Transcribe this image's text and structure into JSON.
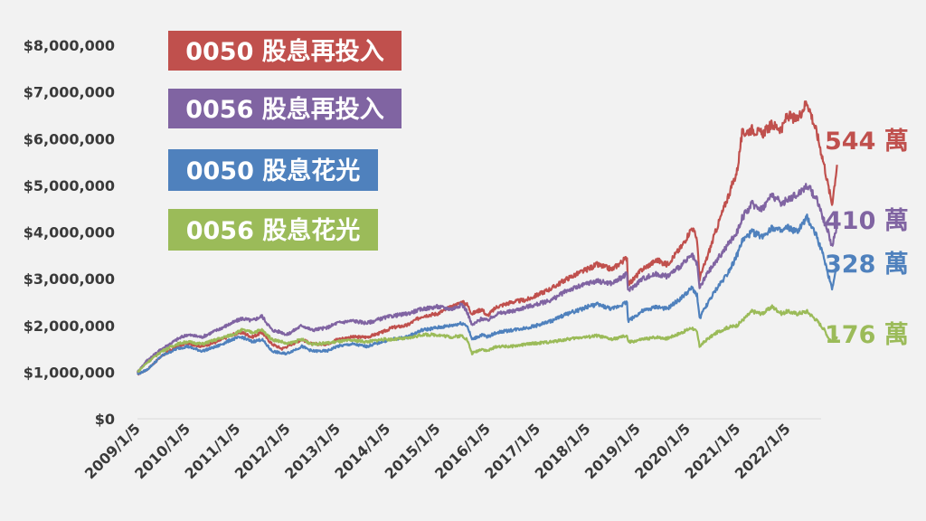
{
  "colors": {
    "s1": "#c0504d",
    "s2": "#8064a2",
    "s3": "#4f81bd",
    "s4": "#9bbb59"
  },
  "chart_data": {
    "type": "line",
    "title": "",
    "xlabel": "",
    "ylabel": "",
    "ylim": [
      0,
      8000000
    ],
    "xlim": [
      "2009/1/5",
      "2023/1/5"
    ],
    "grid": false,
    "legend": "top-left",
    "yticks": [
      0,
      1000000,
      2000000,
      3000000,
      4000000,
      5000000,
      6000000,
      7000000,
      8000000
    ],
    "ytick_labels": [
      "$0",
      "$1,000,000",
      "$2,000,000",
      "$3,000,000",
      "$4,000,000",
      "$5,000,000",
      "$6,000,000",
      "$7,000,000",
      "$8,000,000"
    ],
    "xtick_labels": [
      "2009/1/5",
      "2010/1/5",
      "2011/1/5",
      "2012/1/5",
      "2013/1/5",
      "2014/1/5",
      "2015/1/5",
      "2016/1/5",
      "2017/1/5",
      "2018/1/5",
      "2019/1/5",
      "2020/1/5",
      "2021/1/5",
      "2022/1/5"
    ],
    "series": [
      {
        "name": "0050 股息再投入",
        "end_label": "544 萬",
        "x": [
          2009.01,
          2009.2,
          2009.5,
          2009.8,
          2010.0,
          2010.3,
          2010.6,
          2010.9,
          2011.1,
          2011.3,
          2011.5,
          2011.7,
          2011.9,
          2012.0,
          2012.3,
          2012.5,
          2012.8,
          2013.0,
          2013.3,
          2013.6,
          2013.9,
          2014.1,
          2014.4,
          2014.7,
          2015.0,
          2015.3,
          2015.5,
          2015.6,
          2015.7,
          2015.9,
          2016.0,
          2016.2,
          2016.5,
          2016.8,
          2017.0,
          2017.3,
          2017.6,
          2017.9,
          2018.0,
          2018.2,
          2018.5,
          2018.8,
          2018.82,
          2018.9,
          2019.1,
          2019.4,
          2019.6,
          2019.9,
          2020.1,
          2020.2,
          2020.25,
          2020.4,
          2020.6,
          2020.8,
          2021.0,
          2021.1,
          2021.3,
          2021.5,
          2021.7,
          2021.9,
          2022.0,
          2022.2,
          2022.4,
          2022.6,
          2022.75,
          2022.82,
          2022.9,
          2023.0
        ],
        "values": [
          950000,
          1050000,
          1350000,
          1550000,
          1620000,
          1550000,
          1650000,
          1800000,
          1850000,
          1750000,
          1850000,
          1600000,
          1500000,
          1550000,
          1700000,
          1600000,
          1600000,
          1700000,
          1750000,
          1750000,
          1850000,
          1950000,
          2000000,
          2200000,
          2250000,
          2400000,
          2500000,
          2450000,
          2250000,
          2350000,
          2200000,
          2400000,
          2500000,
          2550000,
          2650000,
          2800000,
          3000000,
          3150000,
          3200000,
          3300000,
          3200000,
          3450000,
          2900000,
          2950000,
          3200000,
          3400000,
          3300000,
          3700000,
          4100000,
          3850000,
          3000000,
          3450000,
          4100000,
          4700000,
          5300000,
          6100000,
          6200000,
          6100000,
          6300000,
          6200000,
          6500000,
          6400000,
          6800000,
          6100000,
          5400000,
          5000000,
          4600000,
          5440000
        ]
      },
      {
        "name": "0056 股息再投入",
        "end_label": "410 萬",
        "x": [
          2009.01,
          2009.2,
          2009.5,
          2009.8,
          2010.0,
          2010.3,
          2010.6,
          2010.9,
          2011.1,
          2011.3,
          2011.5,
          2011.7,
          2011.9,
          2012.0,
          2012.3,
          2012.5,
          2012.8,
          2013.0,
          2013.3,
          2013.6,
          2013.9,
          2014.1,
          2014.4,
          2014.7,
          2015.0,
          2015.3,
          2015.5,
          2015.6,
          2015.7,
          2015.9,
          2016.0,
          2016.2,
          2016.5,
          2016.8,
          2017.0,
          2017.3,
          2017.6,
          2017.9,
          2018.0,
          2018.2,
          2018.5,
          2018.8,
          2018.82,
          2018.9,
          2019.1,
          2019.4,
          2019.6,
          2019.9,
          2020.1,
          2020.2,
          2020.25,
          2020.4,
          2020.6,
          2020.8,
          2021.0,
          2021.1,
          2021.3,
          2021.5,
          2021.7,
          2021.9,
          2022.0,
          2022.2,
          2022.4,
          2022.6,
          2022.75,
          2022.82,
          2022.9,
          2023.0
        ],
        "values": [
          1000000,
          1250000,
          1500000,
          1700000,
          1800000,
          1750000,
          1900000,
          2050000,
          2150000,
          2100000,
          2200000,
          1900000,
          1850000,
          1800000,
          2000000,
          1900000,
          1950000,
          2050000,
          2100000,
          2050000,
          2150000,
          2200000,
          2250000,
          2350000,
          2400000,
          2350000,
          2450000,
          2300000,
          2000000,
          2150000,
          2100000,
          2250000,
          2300000,
          2400000,
          2450000,
          2550000,
          2750000,
          2850000,
          2900000,
          2950000,
          2900000,
          3100000,
          2750000,
          2800000,
          3000000,
          3100000,
          3050000,
          3300000,
          3500000,
          3300000,
          2800000,
          3100000,
          3400000,
          3700000,
          4000000,
          4300000,
          4600000,
          4500000,
          4800000,
          4600000,
          4700000,
          4800000,
          5000000,
          4700000,
          4200000,
          4000000,
          3700000,
          4100000
        ]
      },
      {
        "name": "0050 股息花光",
        "end_label": "328 萬",
        "x": [
          2009.01,
          2009.2,
          2009.5,
          2009.8,
          2010.0,
          2010.3,
          2010.6,
          2010.9,
          2011.1,
          2011.3,
          2011.5,
          2011.7,
          2011.9,
          2012.0,
          2012.3,
          2012.5,
          2012.8,
          2013.0,
          2013.3,
          2013.6,
          2013.9,
          2014.1,
          2014.4,
          2014.7,
          2015.0,
          2015.3,
          2015.5,
          2015.6,
          2015.7,
          2015.9,
          2016.0,
          2016.2,
          2016.5,
          2016.8,
          2017.0,
          2017.3,
          2017.6,
          2017.9,
          2018.0,
          2018.2,
          2018.5,
          2018.8,
          2018.82,
          2018.9,
          2019.1,
          2019.4,
          2019.6,
          2019.9,
          2020.1,
          2020.2,
          2020.25,
          2020.4,
          2020.6,
          2020.8,
          2021.0,
          2021.1,
          2021.3,
          2021.5,
          2021.7,
          2021.9,
          2022.0,
          2022.2,
          2022.4,
          2022.6,
          2022.75,
          2022.82,
          2022.9,
          2023.0
        ],
        "values": [
          950000,
          1050000,
          1350000,
          1500000,
          1550000,
          1450000,
          1550000,
          1700000,
          1750000,
          1650000,
          1700000,
          1450000,
          1400000,
          1400000,
          1550000,
          1450000,
          1450000,
          1550000,
          1600000,
          1550000,
          1650000,
          1700000,
          1750000,
          1900000,
          1950000,
          2000000,
          2050000,
          2000000,
          1700000,
          1800000,
          1750000,
          1850000,
          1900000,
          1950000,
          2000000,
          2100000,
          2250000,
          2350000,
          2400000,
          2450000,
          2350000,
          2500000,
          2100000,
          2150000,
          2300000,
          2400000,
          2350000,
          2600000,
          2800000,
          2650000,
          2150000,
          2450000,
          2800000,
          3100000,
          3500000,
          3800000,
          4000000,
          3900000,
          4100000,
          4000000,
          4100000,
          4000000,
          4300000,
          3900000,
          3400000,
          3100000,
          2800000,
          3280000
        ]
      },
      {
        "name": "0056 股息花光",
        "end_label": "176 萬",
        "x": [
          2009.01,
          2009.2,
          2009.5,
          2009.8,
          2010.0,
          2010.3,
          2010.6,
          2010.9,
          2011.1,
          2011.3,
          2011.5,
          2011.7,
          2011.9,
          2012.0,
          2012.3,
          2012.5,
          2012.8,
          2013.0,
          2013.3,
          2013.6,
          2013.9,
          2014.1,
          2014.4,
          2014.7,
          2015.0,
          2015.3,
          2015.5,
          2015.6,
          2015.7,
          2015.9,
          2016.0,
          2016.2,
          2016.5,
          2016.8,
          2017.0,
          2017.3,
          2017.6,
          2017.9,
          2018.0,
          2018.2,
          2018.5,
          2018.8,
          2018.82,
          2018.9,
          2019.1,
          2019.4,
          2019.6,
          2019.9,
          2020.1,
          2020.2,
          2020.25,
          2020.4,
          2020.6,
          2020.8,
          2021.0,
          2021.1,
          2021.3,
          2021.5,
          2021.7,
          2021.9,
          2022.0,
          2022.2,
          2022.4,
          2022.6,
          2022.75,
          2022.82,
          2022.9,
          2023.0
        ],
        "values": [
          1000000,
          1200000,
          1450000,
          1600000,
          1650000,
          1600000,
          1700000,
          1800000,
          1900000,
          1850000,
          1900000,
          1700000,
          1650000,
          1600000,
          1700000,
          1600000,
          1620000,
          1650000,
          1680000,
          1650000,
          1700000,
          1700000,
          1720000,
          1800000,
          1800000,
          1750000,
          1780000,
          1700000,
          1400000,
          1500000,
          1450000,
          1550000,
          1550000,
          1600000,
          1620000,
          1650000,
          1700000,
          1750000,
          1750000,
          1780000,
          1700000,
          1780000,
          1650000,
          1650000,
          1700000,
          1750000,
          1720000,
          1850000,
          1950000,
          1850000,
          1550000,
          1700000,
          1850000,
          1950000,
          2000000,
          2100000,
          2300000,
          2250000,
          2400000,
          2250000,
          2300000,
          2250000,
          2300000,
          2100000,
          1900000,
          1750000,
          1650000,
          1760000
        ]
      }
    ]
  }
}
